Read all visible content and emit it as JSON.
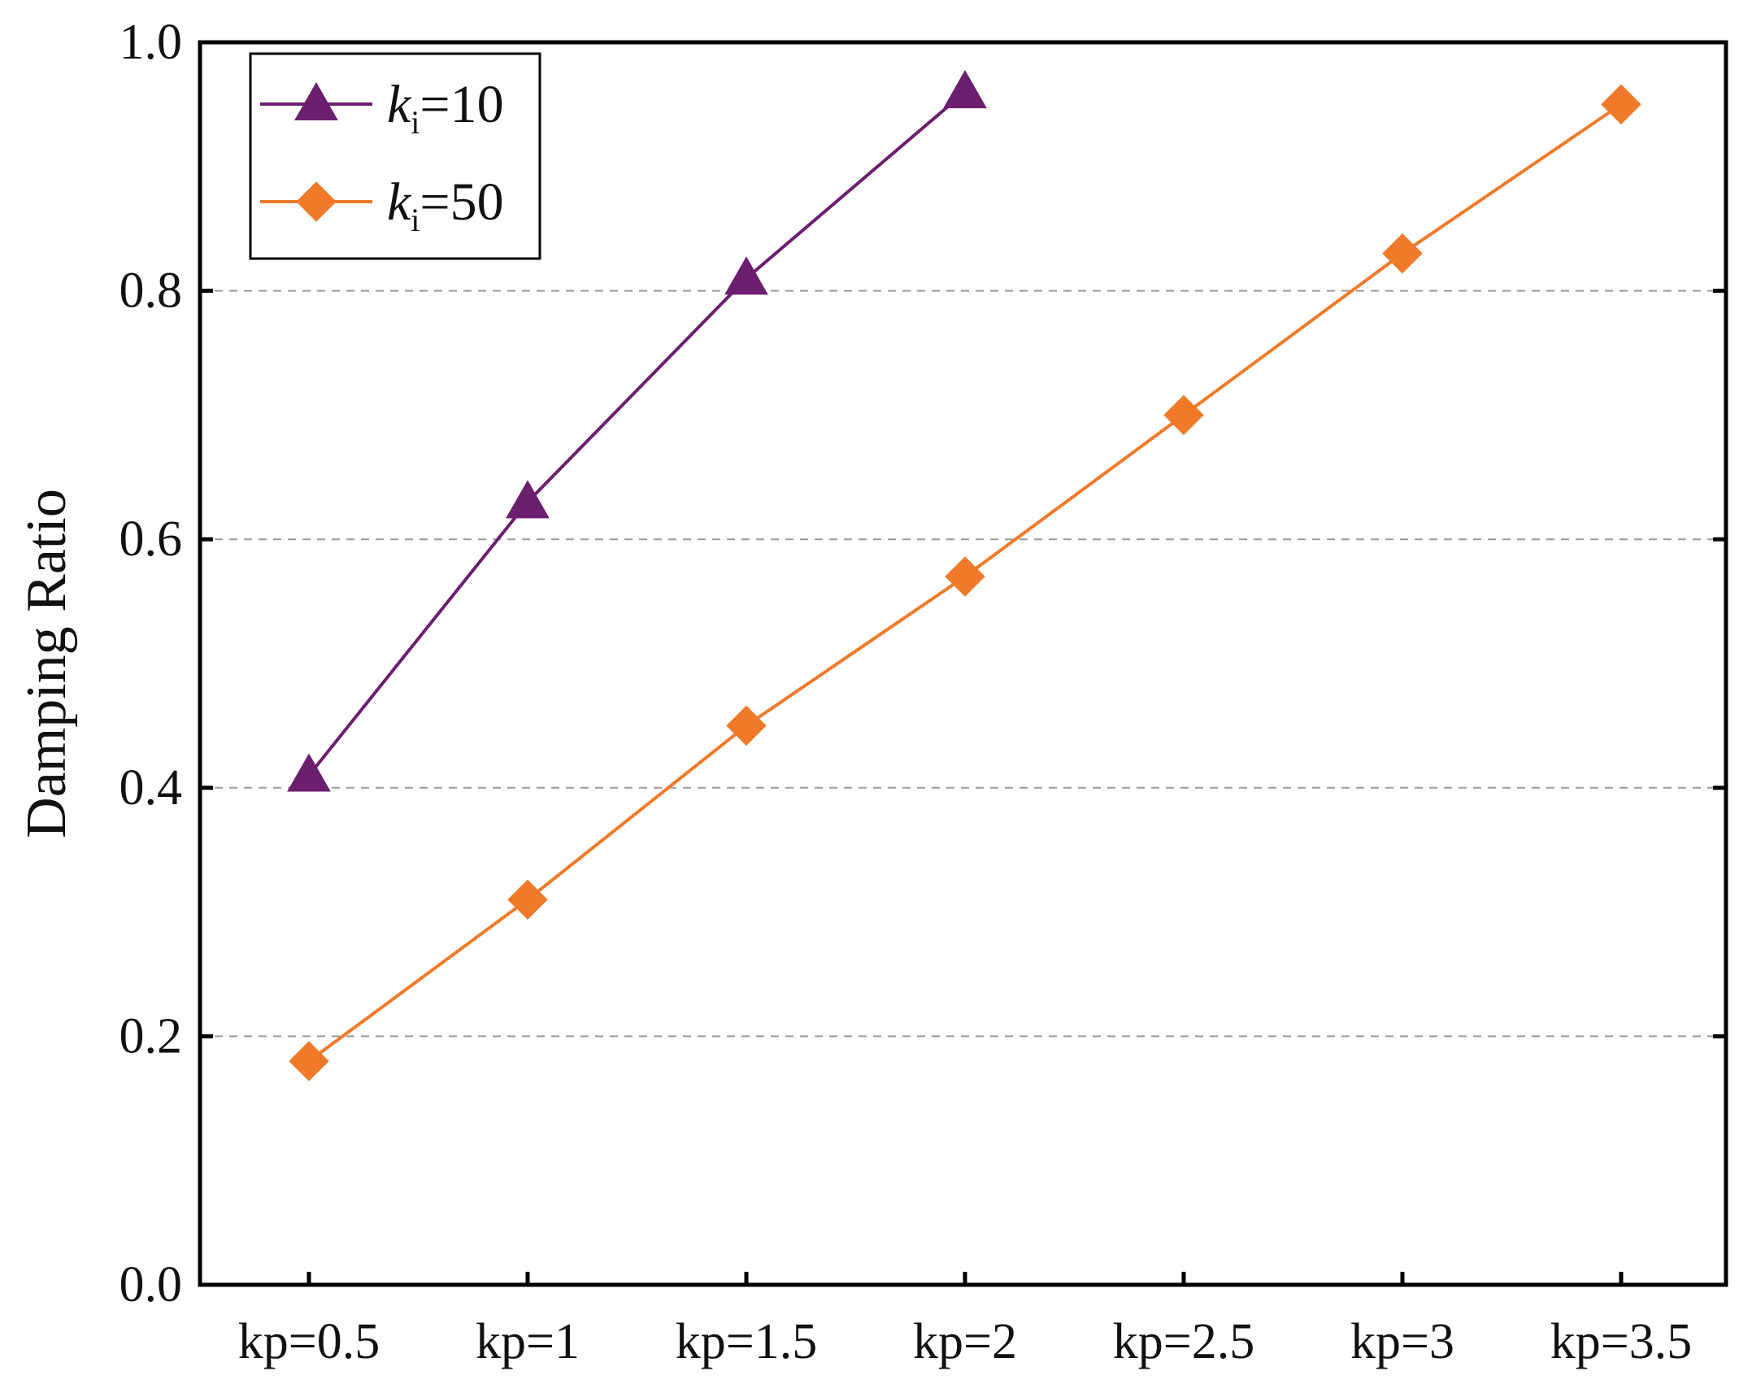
{
  "chart_data": {
    "type": "line",
    "title": "",
    "xlabel": "",
    "ylabel": "Damping Ratio",
    "categories": [
      "kp=0.5",
      "kp=1",
      "kp=1.5",
      "kp=2",
      "kp=2.5",
      "kp=3",
      "kp=3.5"
    ],
    "ylim": [
      0.0,
      1.0
    ],
    "yticks": [
      "0.0",
      "0.2",
      "0.4",
      "0.6",
      "0.8",
      "1.0"
    ],
    "grid": "horizontal dashed at 0.2, 0.4, 0.6, 0.8",
    "legend_position": "top-left",
    "series": [
      {
        "name": "ki=10",
        "legend_italic": "k",
        "legend_sub": "i",
        "legend_rest": "=10",
        "marker": "triangle",
        "color": "#6b1f6e",
        "values": [
          0.41,
          0.63,
          0.81,
          0.96,
          null,
          null,
          null
        ]
      },
      {
        "name": "ki=50",
        "legend_italic": "k",
        "legend_sub": "i",
        "legend_rest": "=50",
        "marker": "diamond",
        "color": "#f07a2a",
        "values": [
          0.18,
          0.31,
          0.45,
          0.57,
          0.7,
          0.83,
          0.95
        ]
      }
    ]
  }
}
